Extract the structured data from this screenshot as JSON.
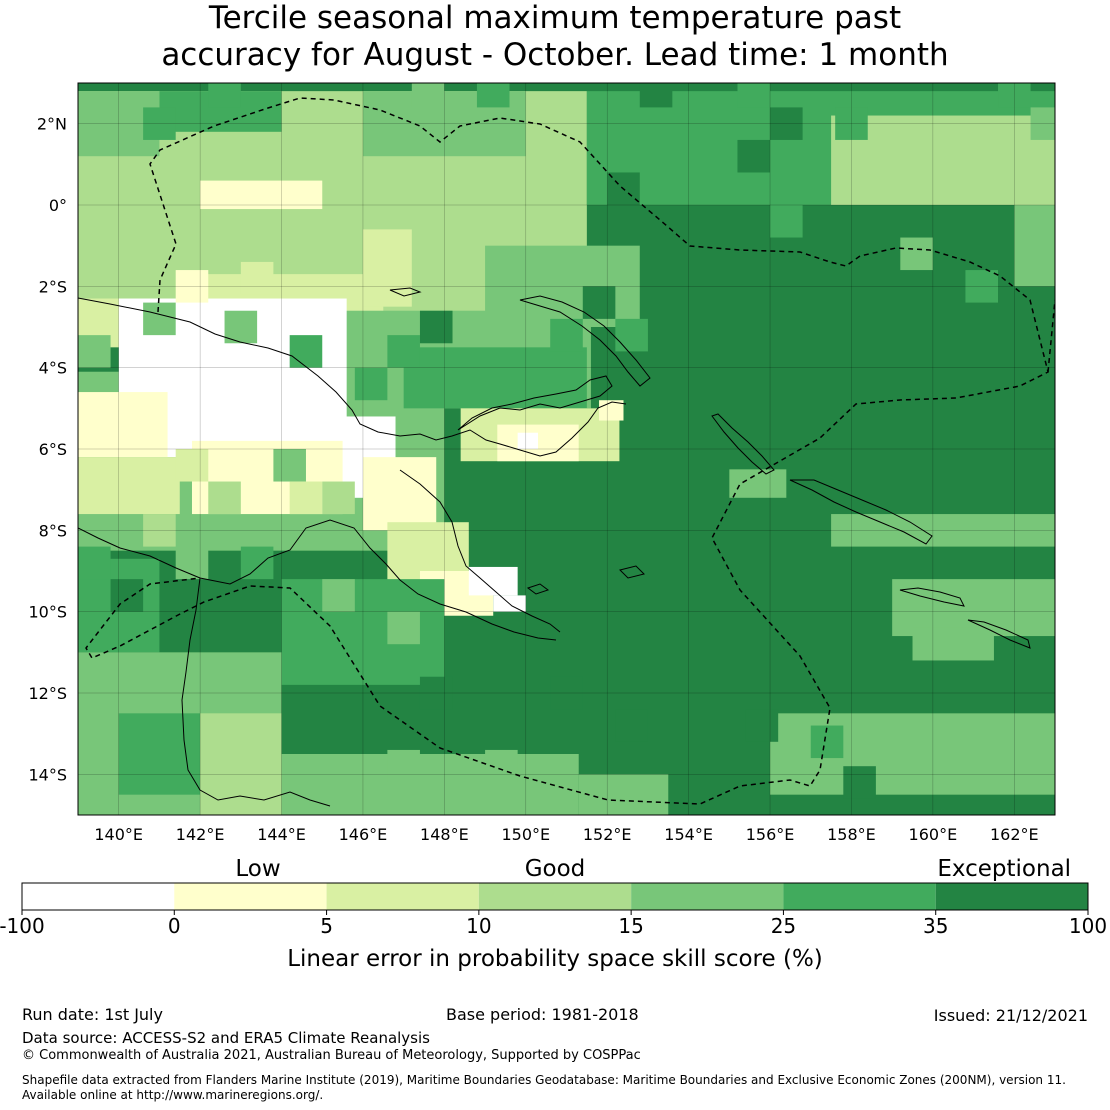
{
  "title": {
    "line1": "Tercile seasonal maximum temperature past",
    "line2": "accuracy for August - October. Lead time: 1 month"
  },
  "map": {
    "lon_range": [
      139,
      163
    ],
    "lat_range": [
      -15,
      3
    ],
    "cell_deg": 0.8,
    "default_class": 6,
    "lon_ticks": [
      {
        "value": 140,
        "label": "140°E"
      },
      {
        "value": 142,
        "label": "142°E"
      },
      {
        "value": 144,
        "label": "144°E"
      },
      {
        "value": 146,
        "label": "146°E"
      },
      {
        "value": 148,
        "label": "148°E"
      },
      {
        "value": 150,
        "label": "150°E"
      },
      {
        "value": 152,
        "label": "152°E"
      },
      {
        "value": 154,
        "label": "154°E"
      },
      {
        "value": 156,
        "label": "156°E"
      },
      {
        "value": 158,
        "label": "158°E"
      },
      {
        "value": 160,
        "label": "160°E"
      },
      {
        "value": 162,
        "label": "162°E"
      }
    ],
    "lat_ticks": [
      {
        "value": 2,
        "label": "2°N"
      },
      {
        "value": 0,
        "label": "0°"
      },
      {
        "value": -2,
        "label": "2°S"
      },
      {
        "value": -4,
        "label": "4°S"
      },
      {
        "value": -6,
        "label": "6°S"
      },
      {
        "value": -8,
        "label": "8°S"
      },
      {
        "value": -10,
        "label": "10°S"
      },
      {
        "value": -12,
        "label": "12°S"
      },
      {
        "value": -14,
        "label": "14°S"
      }
    ],
    "regions": [
      {
        "cls": 3,
        "lon": [
          139,
          151.5
        ],
        "lat": [
          -3,
          2.8
        ]
      },
      {
        "cls": 4,
        "lon": [
          146,
          150
        ],
        "lat": [
          1.2,
          2.8
        ]
      },
      {
        "cls": 5,
        "lon": [
          151.5,
          163
        ],
        "lat": [
          0,
          2.8
        ]
      },
      {
        "cls": 3,
        "lon": [
          157.5,
          163
        ],
        "lat": [
          0,
          2.2
        ]
      },
      {
        "cls": 4,
        "lon": [
          162,
          163
        ],
        "lat": [
          -2,
          0
        ]
      },
      {
        "cls": 4,
        "lon": [
          149,
          152.8
        ],
        "lat": [
          -3,
          -1
        ]
      },
      {
        "cls": 1,
        "lon": [
          142,
          145
        ],
        "lat": [
          -0.1,
          0.6
        ]
      },
      {
        "cls": 2,
        "lon": [
          141.5,
          146.5
        ],
        "lat": [
          -2.8,
          -1.7
        ]
      },
      {
        "cls": 2,
        "lon": [
          146,
          147.2
        ],
        "lat": [
          -2.5,
          -0.6
        ]
      },
      {
        "cls": 4,
        "lon": [
          139,
          141
        ],
        "lat": [
          1.2,
          2.8
        ]
      },
      {
        "cls": 5,
        "lon": [
          141,
          144
        ],
        "lat": [
          1.8,
          2.8
        ]
      },
      {
        "cls": 2,
        "lon": [
          139,
          145
        ],
        "lat": [
          -3.5,
          -2.3
        ]
      },
      {
        "cls": 4,
        "lon": [
          139,
          148
        ],
        "lat": [
          -8.5,
          -4.1
        ]
      },
      {
        "cls": 4,
        "lon": [
          145,
          151.6
        ],
        "lat": [
          -5,
          -2.6
        ]
      },
      {
        "cls": 5,
        "lon": [
          147,
          151.5
        ],
        "lat": [
          -5,
          -3.5
        ]
      },
      {
        "cls": 0,
        "lon": [
          140,
          145.6
        ],
        "lat": [
          -6.2,
          -2.3
        ]
      },
      {
        "cls": 0,
        "lon": [
          144.5,
          146.8
        ],
        "lat": [
          -7.2,
          -5.2
        ]
      },
      {
        "cls": 1,
        "lon": [
          139,
          141.2
        ],
        "lat": [
          -6.2,
          -4.6
        ]
      },
      {
        "cls": 1,
        "lon": [
          141.8,
          145.5
        ],
        "lat": [
          -7.6,
          -5.8
        ]
      },
      {
        "cls": 2,
        "lon": [
          139,
          141.5
        ],
        "lat": [
          -7.6,
          -6.2
        ]
      },
      {
        "cls": 1,
        "lon": [
          146,
          147.8
        ],
        "lat": [
          -8,
          -6.2
        ]
      },
      {
        "cls": 2,
        "lon": [
          146.6,
          148.6
        ],
        "lat": [
          -9.4,
          -7.8
        ]
      },
      {
        "cls": 1,
        "lon": [
          147.4,
          149.2
        ],
        "lat": [
          -10.1,
          -9
        ]
      },
      {
        "cls": 0,
        "lon": [
          148.6,
          149.8
        ],
        "lat": [
          -9.6,
          -8.9
        ]
      },
      {
        "cls": 0,
        "lon": [
          149.2,
          150
        ],
        "lat": [
          -10,
          -9.6
        ]
      },
      {
        "cls": 2,
        "lon": [
          148.4,
          152.3
        ],
        "lat": [
          -6.3,
          -5
        ]
      },
      {
        "cls": 1,
        "lon": [
          149.3,
          151.3
        ],
        "lat": [
          -6.3,
          -5.4
        ]
      },
      {
        "cls": 0,
        "lon": [
          149.8,
          150.3
        ],
        "lat": [
          -6,
          -5.6
        ]
      },
      {
        "cls": 1,
        "lon": [
          151.8,
          152.4
        ],
        "lat": [
          -5.3,
          -4.8
        ]
      },
      {
        "cls": 5,
        "lon": [
          139,
          141
        ],
        "lat": [
          -11,
          -8.7
        ]
      },
      {
        "cls": 5,
        "lon": [
          144,
          148
        ],
        "lat": [
          -11.8,
          -9.2
        ]
      },
      {
        "cls": 4,
        "lon": [
          139,
          144
        ],
        "lat": [
          -15,
          -11
        ]
      },
      {
        "cls": 5,
        "lon": [
          140,
          142
        ],
        "lat": [
          -14.5,
          -12.5
        ]
      },
      {
        "cls": 3,
        "lon": [
          142,
          144
        ],
        "lat": [
          -15,
          -12.5
        ]
      },
      {
        "cls": 4,
        "lon": [
          144,
          151.3
        ],
        "lat": [
          -15,
          -13.5
        ]
      },
      {
        "cls": 4,
        "lon": [
          151.3,
          153.5
        ],
        "lat": [
          -15,
          -14
        ]
      },
      {
        "cls": 4,
        "lon": [
          156,
          163
        ],
        "lat": [
          -14.5,
          -12.5
        ]
      },
      {
        "cls": 4,
        "lon": [
          157.5,
          163
        ],
        "lat": [
          -8.4,
          -7.6
        ]
      },
      {
        "cls": 4,
        "lon": [
          159,
          163
        ],
        "lat": [
          -10.6,
          -9.2
        ]
      },
      {
        "cls": 4,
        "lon": [
          159.5,
          161.5
        ],
        "lat": [
          -11.2,
          -10.4
        ]
      },
      {
        "cls": 4,
        "lon": [
          155,
          156.4
        ],
        "lat": [
          -7.2,
          -6.5
        ]
      }
    ],
    "grid_cells": [
      [
        140.6,
        1.6,
        5
      ],
      [
        142.2,
        2.4,
        5
      ],
      [
        147.2,
        2.4,
        4
      ],
      [
        148.8,
        2.4,
        5
      ],
      [
        152.8,
        2.4,
        6
      ],
      [
        155.2,
        2.4,
        5
      ],
      [
        156.0,
        1.6,
        6
      ],
      [
        157.6,
        1.6,
        5
      ],
      [
        161.6,
        2.4,
        5
      ],
      [
        162.4,
        1.6,
        4
      ],
      [
        152.0,
        0.0,
        6
      ],
      [
        155.2,
        0.8,
        6
      ],
      [
        156.0,
        -0.8,
        5
      ],
      [
        159.2,
        -1.6,
        4
      ],
      [
        160.8,
        -2.4,
        5
      ],
      [
        143.0,
        -2.2,
        2
      ],
      [
        141.4,
        -2.4,
        1
      ],
      [
        140.6,
        -3.2,
        4
      ],
      [
        139.0,
        -4.0,
        4
      ],
      [
        142.6,
        -3.4,
        4
      ],
      [
        144.2,
        -4.0,
        5
      ],
      [
        145.8,
        -4.8,
        5
      ],
      [
        146.6,
        -4.0,
        5
      ],
      [
        147.4,
        -3.4,
        6
      ],
      [
        150.6,
        -3.6,
        5
      ],
      [
        151.4,
        -2.8,
        6
      ],
      [
        152.2,
        -3.6,
        5
      ],
      [
        141.4,
        -6.8,
        2
      ],
      [
        142.2,
        -7.6,
        3
      ],
      [
        143.8,
        -6.8,
        4
      ],
      [
        144.2,
        -7.6,
        2
      ],
      [
        145.0,
        -7.6,
        3
      ],
      [
        140.6,
        -8.4,
        3
      ],
      [
        139.0,
        -9.2,
        5
      ],
      [
        139.8,
        -10.0,
        6
      ],
      [
        141.4,
        -9.2,
        4
      ],
      [
        143.0,
        -9.2,
        5
      ],
      [
        145.0,
        -10.0,
        4
      ],
      [
        146.6,
        -10.8,
        4
      ],
      [
        147.4,
        -12.4,
        6
      ],
      [
        150.6,
        -12.4,
        6
      ],
      [
        152.2,
        -13.2,
        6
      ],
      [
        155.4,
        -13.2,
        6
      ],
      [
        149.0,
        -14.2,
        4
      ],
      [
        146.6,
        -14.2,
        4
      ],
      [
        157.0,
        -13.6,
        5
      ],
      [
        157.8,
        -14.6,
        6
      ]
    ]
  },
  "legend": {
    "category_labels": [
      "Low",
      "Good",
      "Exceptional"
    ],
    "tick_labels": [
      "-100",
      "0",
      "5",
      "10",
      "15",
      "25",
      "35",
      "100"
    ],
    "colors": [
      "#ffffff",
      "#ffffcc",
      "#d9f0a3",
      "#addd8e",
      "#78c679",
      "#41ab5d",
      "#238443"
    ],
    "axis_label": "Linear error in probability space skill score (%)"
  },
  "footer": {
    "run_date": "Run date: 1st July",
    "base_period": "Base period: 1981-2018",
    "issued": "Issued: 21/12/2021",
    "data_source": "Data source: ACCESS-S2 and ERA5 Climate Reanalysis",
    "copyright": "© Commonwealth of Australia 2021, Australian Bureau of Meteorology, Supported by COSPPac",
    "shapefile_line1": "Shapefile data extracted from Flanders Marine Institute (2019), Maritime Boundaries Geodatabase: Maritime Boundaries and Exclusive Economic Zones (200NM), version 11.",
    "shapefile_line2": "Available online at http://www.marineregions.org/."
  }
}
